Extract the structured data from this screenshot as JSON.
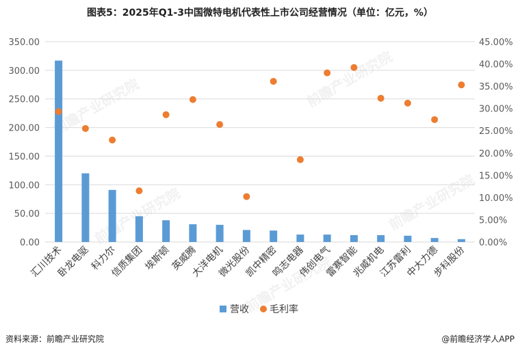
{
  "title": "图表5：2025年Q1-3中国微特电机代表性上市公司经营情况（单位：亿元，%）",
  "source_left": "资料来源：前瞻产业研究院",
  "source_right": "@前瞻经济学人APP",
  "watermark": "前瞻产业研究院",
  "colors": {
    "bar": "#5b9bd5",
    "dot": "#ed7d31",
    "grid": "#d9d9d9"
  },
  "chart_data": {
    "type": "bar",
    "categories": [
      "汇川技术",
      "卧龙电驱",
      "科力尔",
      "信质集团",
      "埃斯顿",
      "英威腾",
      "大洋电机",
      "微光股份",
      "凯中精密",
      "鸣志电器",
      "伟创电气",
      "雷赛智能",
      "兆威机电",
      "江苏雷利",
      "中大力德",
      "步科股份"
    ],
    "series": [
      {
        "name": "营收",
        "type": "bar",
        "axis": "left",
        "values": [
          317,
          120,
          91,
          45,
          38,
          31,
          30,
          21,
          20,
          13,
          13,
          12,
          12,
          11,
          7,
          5
        ]
      },
      {
        "name": "毛利率",
        "type": "scatter",
        "axis": "right",
        "values": [
          29.3,
          25.5,
          22.9,
          11.5,
          28.6,
          32.0,
          26.4,
          10.2,
          36.1,
          18.5,
          38.0,
          39.2,
          32.3,
          31.2,
          27.5,
          35.3
        ]
      }
    ],
    "y_left": {
      "min": 0,
      "max": 350,
      "ticks": [
        "0.00",
        "50.00",
        "100.00",
        "150.00",
        "200.00",
        "250.00",
        "300.00",
        "350.00"
      ]
    },
    "y_right": {
      "min": 0,
      "max": 45,
      "ticks": [
        "0.00%",
        "5.00%",
        "10.00%",
        "15.00%",
        "20.00%",
        "25.00%",
        "30.00%",
        "35.00%",
        "40.00%",
        "45.00%"
      ]
    },
    "legend": [
      "营收",
      "毛利率"
    ],
    "legend_position": "bottom",
    "grid": true
  }
}
